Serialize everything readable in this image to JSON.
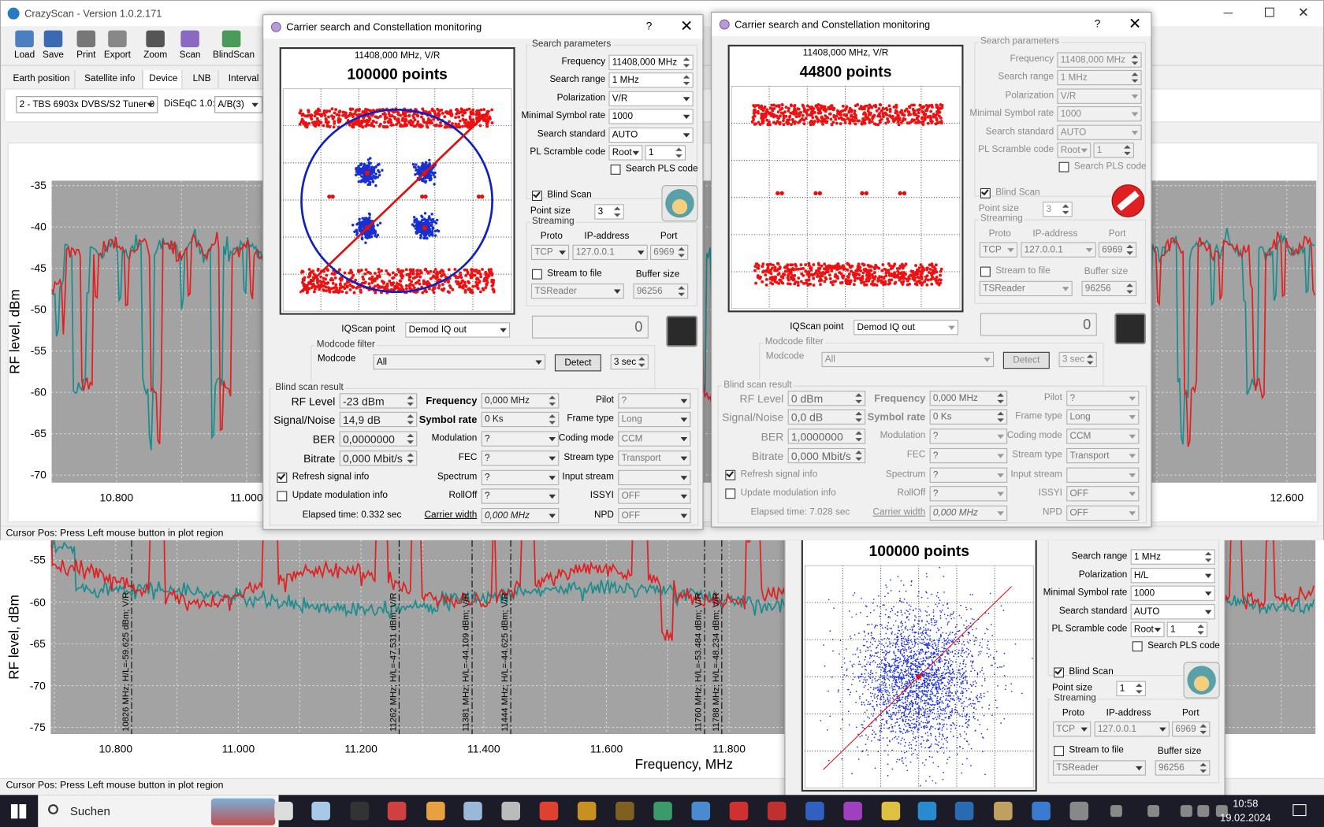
{
  "main_window": {
    "title": "CrazyScan - Version 1.0.2.171",
    "toolbar": [
      "Load",
      "Save",
      "Print",
      "Export",
      "Zoom",
      "Scan",
      "BlindScan"
    ],
    "tabs": [
      "Earth position",
      "Satellite info",
      "Device",
      "LNB",
      "Interval"
    ],
    "tuner": "2 - TBS 6903x DVBS/S2 Tuner 0",
    "diseqc_label": "DiSEqC 1.0:",
    "diseqc_value": "A/B(3)",
    "plot": {
      "y_label": "RF level, dBm",
      "yticks": [
        "-35",
        "-40",
        "-45",
        "-50",
        "-55",
        "-60",
        "-65",
        "-70"
      ],
      "xticks": [
        "10.800",
        "11.000",
        "12.600"
      ]
    },
    "status": "Cursor Pos: Press Left mouse button in plot region"
  },
  "second_window": {
    "plot": {
      "y_label": "RF level, dBm",
      "yticks": [
        "-55",
        "-60",
        "-65",
        "-70",
        "-75"
      ],
      "xticks": [
        "10.800",
        "11.000",
        "11.200",
        "11.400",
        "11.600",
        "11.800"
      ],
      "x_label": "Frequency, MHz",
      "markers": [
        "10826 MHz; H/L=-59.625 dBm; V/R",
        "11262 MHz; H/L=-47.531 dBm; V/R",
        "11381 MHz; H/L=-44.109 dBm; V/R",
        "11444 MHz; H/L=-44.625 dBm; V/R",
        "11760 MHz; H/L=-53.484 dBm; V/R",
        "11788 MHz; H/L=-48.234 dBm; V/R"
      ]
    },
    "status": "Cursor Pos: Press Left mouse button in plot region"
  },
  "dialogs": [
    {
      "title": "Carrier search and Constellation monitoring",
      "help": "?",
      "constellation": {
        "frequency": "11408,000 MHz, V/R",
        "points": "100000 points"
      },
      "search": {
        "legend": "Search parameters",
        "fields": [
          {
            "label": "Frequency",
            "value": "11408,000 MHz"
          },
          {
            "label": "Search range",
            "value": "1 MHz"
          },
          {
            "label": "Polarization",
            "value": "V/R"
          },
          {
            "label": "Minimal Symbol rate",
            "value": "1000"
          },
          {
            "label": "Search standard",
            "value": "AUTO"
          },
          {
            "label": "PL Scramble code",
            "value": "Root",
            "value2": "1"
          }
        ],
        "pls": {
          "label": "Search PLS code",
          "checked": false
        }
      },
      "blind_scan": {
        "label": "Blind Scan",
        "checked": true
      },
      "point_size": {
        "label": "Point size",
        "value": "3"
      },
      "streaming": {
        "legend": "Streaming",
        "proto_label": "Proto",
        "ip_label": "IP-address",
        "port_label": "Port",
        "proto": "TCP",
        "ip": "127.0.0.1",
        "port": "6969",
        "to_file": {
          "label": "Stream to file",
          "checked": false
        },
        "buffer_label": "Buffer size",
        "reader": "TSReader",
        "buffer": "96256"
      },
      "counter": "0",
      "iqscan": {
        "label": "IQScan point",
        "value": "Demod IQ out"
      },
      "modcode": {
        "legend": "Modcode filter",
        "label": "Modcode",
        "value": "All",
        "detect": "Detect",
        "time": "3 sec"
      },
      "result": {
        "legend": "Blind scan result",
        "col1": [
          {
            "label": "RF Level",
            "value": "-23 dBm"
          },
          {
            "label": "Signal/Noise",
            "value": "14,9 dB"
          },
          {
            "label": "BER",
            "value": "0,0000000"
          },
          {
            "label": "Bitrate",
            "value": "0,000 Mbit/s"
          }
        ],
        "col2": [
          {
            "label": "Frequency",
            "value": "0,000 MHz"
          },
          {
            "label": "Symbol rate",
            "value": "0 Ks"
          },
          {
            "label": "Modulation",
            "value": "?"
          },
          {
            "label": "FEC",
            "value": "?"
          },
          {
            "label": "Spectrum",
            "value": "?"
          },
          {
            "label": "RollOff",
            "value": "?"
          },
          {
            "label": "Carrier width",
            "value": "0,000 MHz"
          }
        ],
        "col3": [
          {
            "label": "Pilot",
            "value": "?"
          },
          {
            "label": "Frame type",
            "value": "Long"
          },
          {
            "label": "Coding mode",
            "value": "CCM"
          },
          {
            "label": "Stream type",
            "value": "Transport"
          },
          {
            "label": "Input stream"
          },
          {
            "label": "ISSYI",
            "value": "OFF"
          },
          {
            "label": "NPD",
            "value": "OFF"
          }
        ],
        "refresh": {
          "label": "Refresh signal info",
          "checked": true
        },
        "update": {
          "label": "Update modulation info",
          "checked": false
        },
        "elapsed": "Elapsed time: 0.332 sec"
      }
    },
    {
      "title": "Carrier search and Constellation monitoring",
      "help": "?",
      "constellation": {
        "frequency": "11408,000 MHz, V/R",
        "points": "44800 points"
      },
      "search": {
        "legend": "Search parameters",
        "fields": [
          {
            "label": "Frequency",
            "value": "11408,000 MHz"
          },
          {
            "label": "Search range",
            "value": "1 MHz"
          },
          {
            "label": "Polarization",
            "value": "V/R"
          },
          {
            "label": "Minimal Symbol rate",
            "value": "1000"
          },
          {
            "label": "Search standard",
            "value": "AUTO"
          },
          {
            "label": "PL Scramble code",
            "value": "Root",
            "value2": "1"
          }
        ],
        "pls": {
          "label": "Search PLS code",
          "checked": false
        }
      },
      "blind_scan": {
        "label": "Blind Scan",
        "checked": true
      },
      "point_size": {
        "label": "Point size",
        "value": "3"
      },
      "streaming": {
        "legend": "Streaming",
        "proto_label": "Proto",
        "ip_label": "IP-address",
        "port_label": "Port",
        "proto": "TCP",
        "ip": "127.0.0.1",
        "port": "6969",
        "to_file": {
          "label": "Stream to file",
          "checked": false
        },
        "buffer_label": "Buffer size",
        "reader": "TSReader",
        "buffer": "96256"
      },
      "counter": "0",
      "iqscan": {
        "label": "IQScan point",
        "value": "Demod IQ out"
      },
      "modcode": {
        "legend": "Modcode filter",
        "label": "Modcode",
        "value": "All",
        "detect": "Detect",
        "time": "3 sec"
      },
      "result": {
        "legend": "Blind scan result",
        "col1": [
          {
            "label": "RF Level",
            "value": "0 dBm"
          },
          {
            "label": "Signal/Noise",
            "value": "0,0 dB"
          },
          {
            "label": "BER",
            "value": "1,0000000"
          },
          {
            "label": "Bitrate",
            "value": "0,000 Mbit/s"
          }
        ],
        "col2": [
          {
            "label": "Frequency",
            "value": "0,000 MHz"
          },
          {
            "label": "Symbol rate",
            "value": "0 Ks"
          },
          {
            "label": "Modulation",
            "value": "?"
          },
          {
            "label": "FEC",
            "value": "?"
          },
          {
            "label": "Spectrum",
            "value": "?"
          },
          {
            "label": "RollOff",
            "value": "?"
          },
          {
            "label": "Carrier width",
            "value": "0,000 MHz"
          }
        ],
        "col3": [
          {
            "label": "Pilot",
            "value": "?"
          },
          {
            "label": "Frame type",
            "value": "Long"
          },
          {
            "label": "Coding mode",
            "value": "CCM"
          },
          {
            "label": "Stream type",
            "value": "Transport"
          },
          {
            "label": "Input stream"
          },
          {
            "label": "ISSYI",
            "value": "OFF"
          },
          {
            "label": "NPD",
            "value": "OFF"
          }
        ],
        "refresh": {
          "label": "Refresh signal info",
          "checked": true
        },
        "update": {
          "label": "Update modulation info",
          "checked": false
        },
        "elapsed": "Elapsed time: 7.028 sec"
      }
    },
    {
      "constellation": {
        "points": "100000 points"
      },
      "search": {
        "fields": [
          {
            "label": "Search range",
            "value": "1 MHz"
          },
          {
            "label": "Polarization",
            "value": "H/L"
          },
          {
            "label": "Minimal Symbol rate",
            "value": "1000"
          },
          {
            "label": "Search standard",
            "value": "AUTO"
          },
          {
            "label": "PL Scramble code",
            "value": "Root",
            "value2": "1"
          }
        ],
        "pls": {
          "label": "Search PLS code",
          "checked": false
        }
      },
      "blind_scan": {
        "label": "Blind Scan",
        "checked": true
      },
      "point_size": {
        "label": "Point size",
        "value": "1"
      },
      "streaming": {
        "legend": "Streaming",
        "proto_label": "Proto",
        "ip_label": "IP-address",
        "port_label": "Port",
        "proto": "TCP",
        "ip": "127.0.0.1",
        "port": "6969",
        "to_file": {
          "label": "Stream to file",
          "checked": false
        },
        "buffer_label": "Buffer size",
        "reader": "TSReader",
        "buffer": "96256"
      }
    }
  ],
  "taskbar": {
    "search": "Suchen",
    "time": "10:58",
    "date": "19.02.2024"
  }
}
